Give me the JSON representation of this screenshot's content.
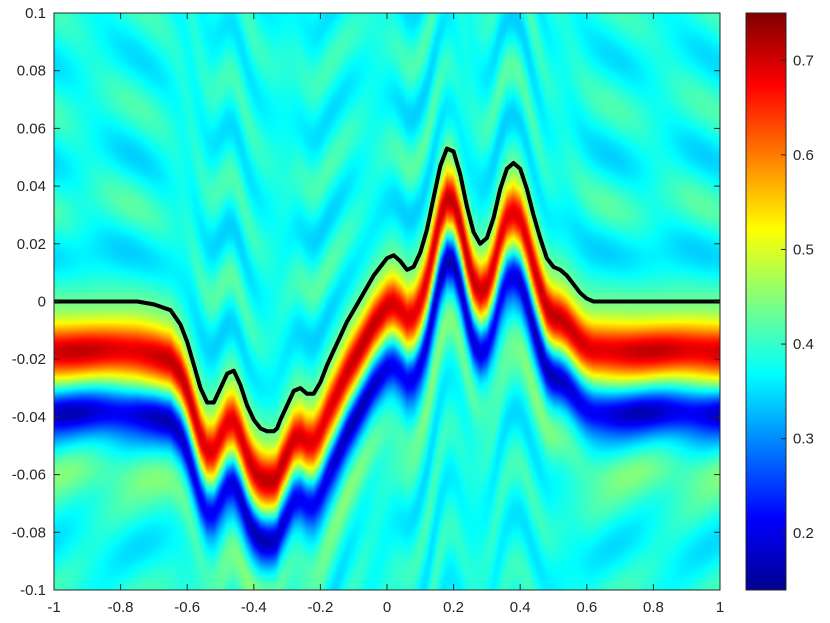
{
  "chart_data": {
    "type": "heatmap",
    "title": "",
    "xlabel": "",
    "ylabel": "",
    "xlim": [
      -1,
      1
    ],
    "ylim": [
      -0.1,
      0.1
    ],
    "colormap": "jet",
    "colorbar": {
      "range": [
        0.14,
        0.75
      ],
      "ticks": [
        "0.2",
        "0.3",
        "0.4",
        "0.5",
        "0.6",
        "0.7"
      ],
      "tick_values": [
        0.2,
        0.3,
        0.4,
        0.5,
        0.6,
        0.7
      ]
    },
    "x_ticks": [
      "-1",
      "-0.8",
      "-0.6",
      "-0.4",
      "-0.2",
      "0",
      "0.2",
      "0.4",
      "0.6",
      "0.8",
      "1"
    ],
    "x_tick_values": [
      -1,
      -0.8,
      -0.6,
      -0.4,
      -0.2,
      0,
      0.2,
      0.4,
      0.6,
      0.8,
      1
    ],
    "y_ticks": [
      "0.1",
      "0.08",
      "0.06",
      "0.04",
      "0.02",
      "0",
      "-0.02",
      "-0.04",
      "-0.06",
      "-0.08",
      "-0.1"
    ],
    "y_tick_values": [
      0.1,
      0.08,
      0.06,
      0.04,
      0.02,
      0,
      -0.02,
      -0.04,
      -0.06,
      -0.08,
      -0.1
    ],
    "boundary_curve": {
      "color": "#000000",
      "x": [
        -1,
        -0.8,
        -0.75,
        -0.7,
        -0.65,
        -0.62,
        -0.6,
        -0.58,
        -0.56,
        -0.54,
        -0.52,
        -0.5,
        -0.48,
        -0.46,
        -0.44,
        -0.42,
        -0.4,
        -0.38,
        -0.36,
        -0.34,
        -0.33,
        -0.32,
        -0.3,
        -0.28,
        -0.26,
        -0.24,
        -0.22,
        -0.2,
        -0.18,
        -0.16,
        -0.14,
        -0.12,
        -0.1,
        -0.08,
        -0.06,
        -0.04,
        -0.02,
        0,
        0.02,
        0.04,
        0.06,
        0.08,
        0.1,
        0.12,
        0.14,
        0.16,
        0.18,
        0.2,
        0.22,
        0.24,
        0.26,
        0.28,
        0.3,
        0.32,
        0.34,
        0.36,
        0.38,
        0.4,
        0.42,
        0.44,
        0.46,
        0.48,
        0.5,
        0.52,
        0.54,
        0.56,
        0.58,
        0.6,
        0.62,
        0.64,
        0.66,
        0.68,
        0.7,
        0.72,
        0.75,
        0.8,
        1
      ],
      "y": [
        0,
        0,
        0,
        -0.001,
        -0.003,
        -0.008,
        -0.014,
        -0.022,
        -0.03,
        -0.035,
        -0.035,
        -0.03,
        -0.025,
        -0.024,
        -0.029,
        -0.036,
        -0.041,
        -0.044,
        -0.045,
        -0.045,
        -0.044,
        -0.041,
        -0.036,
        -0.031,
        -0.03,
        -0.032,
        -0.032,
        -0.028,
        -0.022,
        -0.017,
        -0.012,
        -0.007,
        -0.003,
        0.001,
        0.005,
        0.009,
        0.012,
        0.015,
        0.016,
        0.014,
        0.011,
        0.012,
        0.017,
        0.025,
        0.036,
        0.047,
        0.053,
        0.052,
        0.044,
        0.033,
        0.024,
        0.02,
        0.022,
        0.029,
        0.039,
        0.046,
        0.048,
        0.046,
        0.039,
        0.03,
        0.022,
        0.015,
        0.012,
        0.011,
        0.009,
        0.006,
        0.003,
        0.001,
        0,
        0,
        0,
        0,
        0,
        0,
        0,
        0,
        0
      ]
    }
  }
}
